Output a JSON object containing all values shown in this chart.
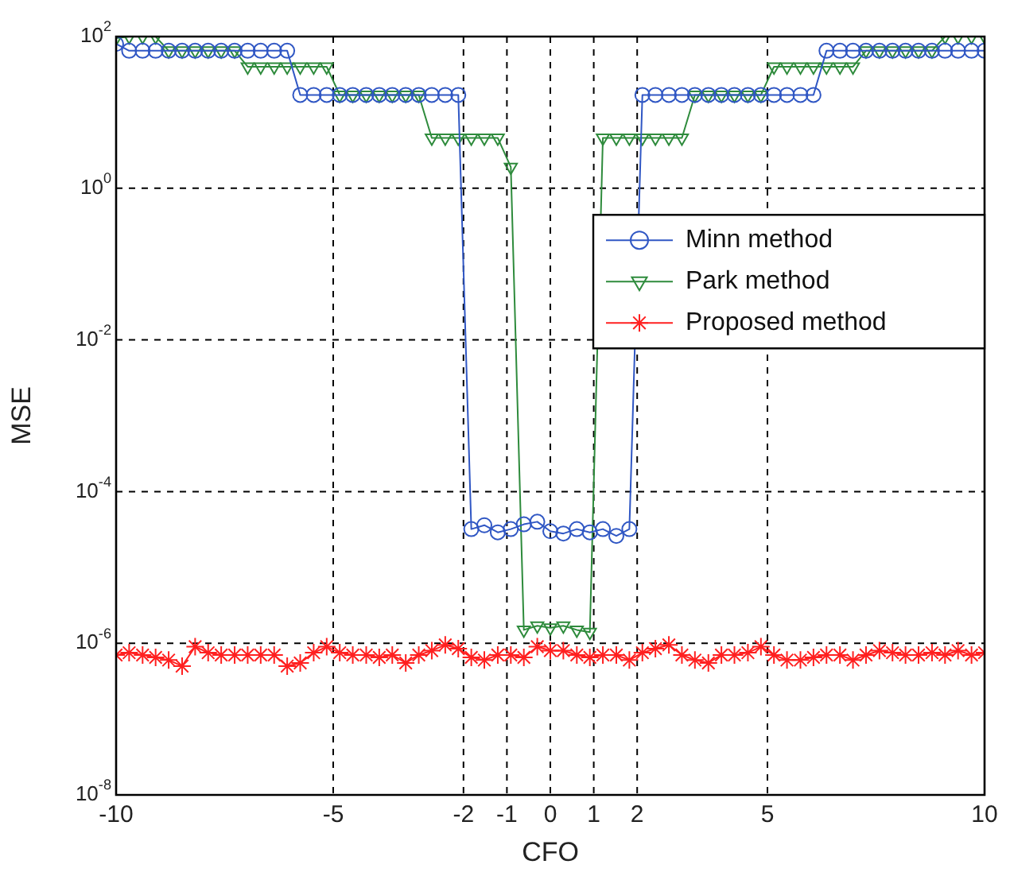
{
  "chart_data": {
    "type": "line",
    "xlabel": "CFO",
    "ylabel": "MSE",
    "log": "y",
    "grid": true,
    "legend": "right",
    "line_style": "solid",
    "x": [
      -10,
      -9.7,
      -9.39,
      -9.09,
      -8.79,
      -8.48,
      -8.18,
      -7.88,
      -7.58,
      -7.27,
      -6.97,
      -6.67,
      -6.36,
      -6.06,
      -5.76,
      -5.45,
      -5.15,
      -4.85,
      -4.55,
      -4.24,
      -3.94,
      -3.64,
      -3.33,
      -3.03,
      -2.73,
      -2.42,
      -2.12,
      -1.82,
      -1.52,
      -1.21,
      -0.91,
      -0.61,
      -0.3,
      0,
      0.3,
      0.61,
      0.91,
      1.21,
      1.52,
      1.82,
      2.12,
      2.42,
      2.73,
      3.03,
      3.33,
      3.64,
      3.94,
      4.24,
      4.55,
      4.85,
      5.15,
      5.45,
      5.76,
      6.06,
      6.36,
      6.67,
      6.97,
      7.27,
      7.58,
      7.88,
      8.18,
      8.48,
      8.79,
      9.09,
      9.39,
      9.7,
      10
    ],
    "xlim": [
      -10,
      10
    ],
    "xticks": [
      -10,
      -5,
      -2,
      -1,
      0,
      1,
      2,
      5,
      10
    ],
    "ylim": [
      1e-08,
      100
    ],
    "yticks": [
      {
        "value": 1e-08,
        "label": "10$^{-8}$"
      },
      {
        "value": 1e-06,
        "label": "10$^{-6}$"
      },
      {
        "value": 0.0001,
        "label": "10$^{-4}$"
      },
      {
        "value": 0.01,
        "label": "10$^{-2}$"
      },
      {
        "value": 1,
        "label": "10$^{0}$"
      },
      {
        "value": 100,
        "label": "10$^{2}$"
      }
    ],
    "series": [
      {
        "name": "Minn method",
        "color": "#3057c4",
        "marker": "circle",
        "values": [
          80,
          65,
          65,
          65,
          65,
          65,
          65,
          65,
          65,
          65,
          65,
          65,
          65,
          65,
          17,
          17,
          17,
          17,
          17,
          17,
          17,
          17,
          17,
          17,
          17,
          17,
          17,
          3.2e-05,
          3.6e-05,
          2.9e-05,
          3.2e-05,
          3.7e-05,
          4e-05,
          3e-05,
          2.8e-05,
          3.2e-05,
          2.9e-05,
          3.2e-05,
          2.6e-05,
          3.2e-05,
          17,
          17,
          17,
          17,
          17,
          17,
          17,
          17,
          17,
          17,
          17,
          17,
          17,
          17,
          65,
          65,
          65,
          65,
          65,
          65,
          65,
          65,
          65,
          65,
          65,
          65,
          65
        ]
      },
      {
        "name": "Park method",
        "color": "#2e8b3c",
        "marker": "triangle",
        "values": [
          95,
          100,
          100,
          100,
          65,
          65,
          65,
          65,
          65,
          65,
          40,
          40,
          40,
          40,
          40,
          40,
          40,
          17,
          17,
          17,
          17,
          17,
          17,
          17,
          4.6,
          4.6,
          4.6,
          4.6,
          4.6,
          4.6,
          1.9,
          1.5e-06,
          1.7e-06,
          1.6e-06,
          1.7e-06,
          1.5e-06,
          1.4e-06,
          4.6,
          4.6,
          4.6,
          4.6,
          4.6,
          4.6,
          4.6,
          17,
          17,
          17,
          17,
          17,
          17,
          40,
          40,
          40,
          40,
          40,
          40,
          40,
          65,
          65,
          65,
          65,
          65,
          65,
          100,
          100,
          100,
          100
        ]
      },
      {
        "name": "Proposed method",
        "color": "#ff2020",
        "marker": "cross",
        "values": [
          7e-07,
          7.5e-07,
          7e-07,
          6.5e-07,
          6e-07,
          5e-07,
          9e-07,
          7.5e-07,
          7e-07,
          7e-07,
          7e-07,
          7e-07,
          7e-07,
          5e-07,
          5.5e-07,
          7.5e-07,
          9e-07,
          7.5e-07,
          7e-07,
          7e-07,
          6.5e-07,
          7e-07,
          5.5e-07,
          7e-07,
          8e-07,
          9.5e-07,
          8.5e-07,
          6.5e-07,
          6e-07,
          7e-07,
          7e-07,
          6.5e-07,
          9e-07,
          8e-07,
          8e-07,
          7e-07,
          6.5e-07,
          7e-07,
          7e-07,
          6e-07,
          7.5e-07,
          8.5e-07,
          9.5e-07,
          7e-07,
          6e-07,
          5.5e-07,
          7e-07,
          7e-07,
          7.5e-07,
          9e-07,
          7e-07,
          6e-07,
          6e-07,
          6.5e-07,
          7e-07,
          7e-07,
          6e-07,
          7e-07,
          8e-07,
          7.5e-07,
          7e-07,
          7e-07,
          7.5e-07,
          7e-07,
          8e-07,
          7e-07,
          7.5e-07
        ]
      }
    ]
  }
}
